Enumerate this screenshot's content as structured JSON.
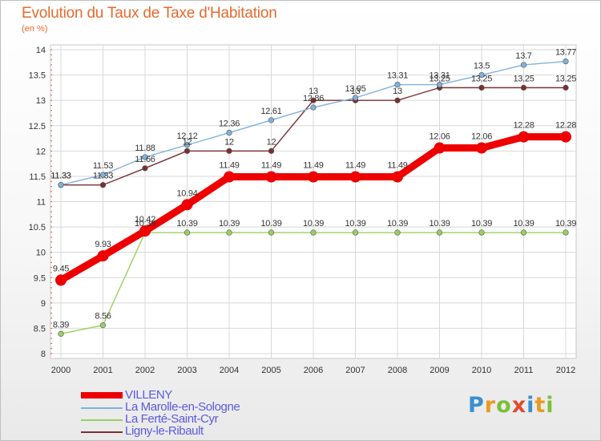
{
  "title": "Evolution du Taux de Taxe d'Habitation",
  "subtitle": "(en %)",
  "logo_text": "Proxiti",
  "chart_data": {
    "type": "line",
    "title": "Evolution du Taux de Taxe d'Habitation",
    "ylabel": "(en %)",
    "xlabel": "",
    "x": [
      "2000",
      "2001",
      "2002",
      "2003",
      "2004",
      "2005",
      "2006",
      "2007",
      "2008",
      "2009",
      "2010",
      "2011",
      "2012"
    ],
    "ylim": [
      8,
      14
    ],
    "yticks": [
      "8",
      "8.5",
      "9",
      "9.5",
      "10",
      "10.5",
      "11",
      "11.5",
      "12",
      "12.5",
      "13",
      "13.5",
      "14"
    ],
    "grid": true,
    "legend_position": "bottom-left",
    "series": [
      {
        "name": "VILLENY",
        "color": "#ee0000",
        "values": [
          9.45,
          9.93,
          10.42,
          10.94,
          11.49,
          11.49,
          11.49,
          11.49,
          11.49,
          12.06,
          12.06,
          12.28,
          12.28
        ]
      },
      {
        "name": "La Marolle-en-Sologne",
        "color": "#7fb2dd",
        "values": [
          11.33,
          11.53,
          11.88,
          12.12,
          12.36,
          12.61,
          12.86,
          13.05,
          13.31,
          13.31,
          13.5,
          13.7,
          13.77
        ]
      },
      {
        "name": "La Ferté-Saint-Cyr",
        "color": "#9ad060",
        "values": [
          8.39,
          8.56,
          10.39,
          10.39,
          10.39,
          10.39,
          10.39,
          10.39,
          10.39,
          10.39,
          10.39,
          10.39,
          10.39
        ]
      },
      {
        "name": "Ligny-le-Ribault",
        "color": "#7a3030",
        "values": [
          11.33,
          11.33,
          11.66,
          12,
          12,
          12,
          13,
          13,
          13,
          13.25,
          13.25,
          13.25,
          13.25
        ]
      }
    ],
    "data_labels": {
      "VILLENY": [
        "9.45",
        "9.93",
        "10.42",
        "10.94",
        "11.49",
        "11.49",
        "11.49",
        "11.49",
        "11.49",
        "12.06",
        "12.06",
        "12.28",
        "12.28"
      ],
      "La Marolle-en-Sologne": [
        "11.33",
        "11.53",
        "11.88",
        "12.12",
        "12.36",
        "12.61",
        "12.86",
        "13.05",
        "13.31",
        "13.31",
        "13.5",
        "13.7",
        "13.77"
      ],
      "La Ferté-Saint-Cyr": [
        "8.39",
        "8.56",
        "10.39",
        "10.39",
        "10.39",
        "10.39",
        "10.39",
        "10.39",
        "10.39",
        "10.39",
        "10.39",
        "10.39",
        "10.39"
      ],
      "Ligny-le-Ribault": [
        "11.33",
        "11.33",
        "11.66",
        "12",
        "12",
        "12",
        "13",
        "13",
        "13",
        "13.25",
        "13.25",
        "13.25",
        "13.25"
      ]
    }
  }
}
